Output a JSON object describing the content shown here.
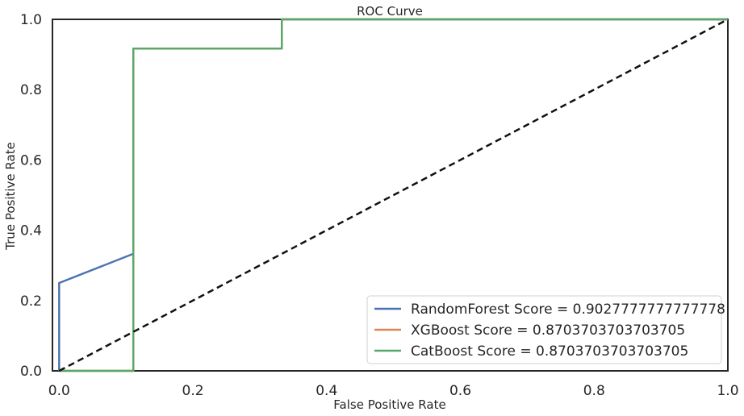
{
  "chart_data": {
    "type": "line",
    "title": "ROC Curve",
    "xlabel": "False Positive Rate",
    "ylabel": "True Positive Rate",
    "xlim": [
      0.0,
      1.0
    ],
    "ylim": [
      0.0,
      1.0
    ],
    "xticks": [
      0.0,
      0.2,
      0.4,
      0.6,
      0.8,
      1.0
    ],
    "yticks": [
      0.0,
      0.2,
      0.4,
      0.6,
      0.8,
      1.0
    ],
    "xtick_labels": [
      "0.0",
      "0.2",
      "0.4",
      "0.6",
      "0.8",
      "1.0"
    ],
    "ytick_labels": [
      "0.0",
      "0.2",
      "0.4",
      "0.6",
      "0.8",
      "1.0"
    ],
    "grid": false,
    "legend_position": "lower-right",
    "series": [
      {
        "name": "RandomForest Score = 0.9027777777777778",
        "color": "#4c72b0",
        "x": [
          0.0,
          0.0,
          0.111,
          0.111,
          0.333,
          0.333,
          1.0
        ],
        "y": [
          0.0,
          0.25,
          0.333,
          0.917,
          0.917,
          1.0,
          1.0
        ]
      },
      {
        "name": "XGBoost Score = 0.8703703703703705",
        "color": "#dd8452",
        "x": [
          0.0,
          0.111,
          0.111,
          0.333,
          0.333,
          1.0
        ],
        "y": [
          0.0,
          0.0,
          0.917,
          0.917,
          1.0,
          1.0
        ]
      },
      {
        "name": "CatBoost Score = 0.8703703703703705",
        "color": "#55a868",
        "x": [
          0.0,
          0.111,
          0.111,
          0.333,
          0.333,
          1.0
        ],
        "y": [
          0.0,
          0.0,
          0.917,
          0.917,
          1.0,
          1.0
        ]
      }
    ],
    "reference_line": {
      "style": "dashed",
      "color": "#111111",
      "x": [
        0.0,
        1.0
      ],
      "y": [
        0.0,
        1.0
      ]
    }
  }
}
